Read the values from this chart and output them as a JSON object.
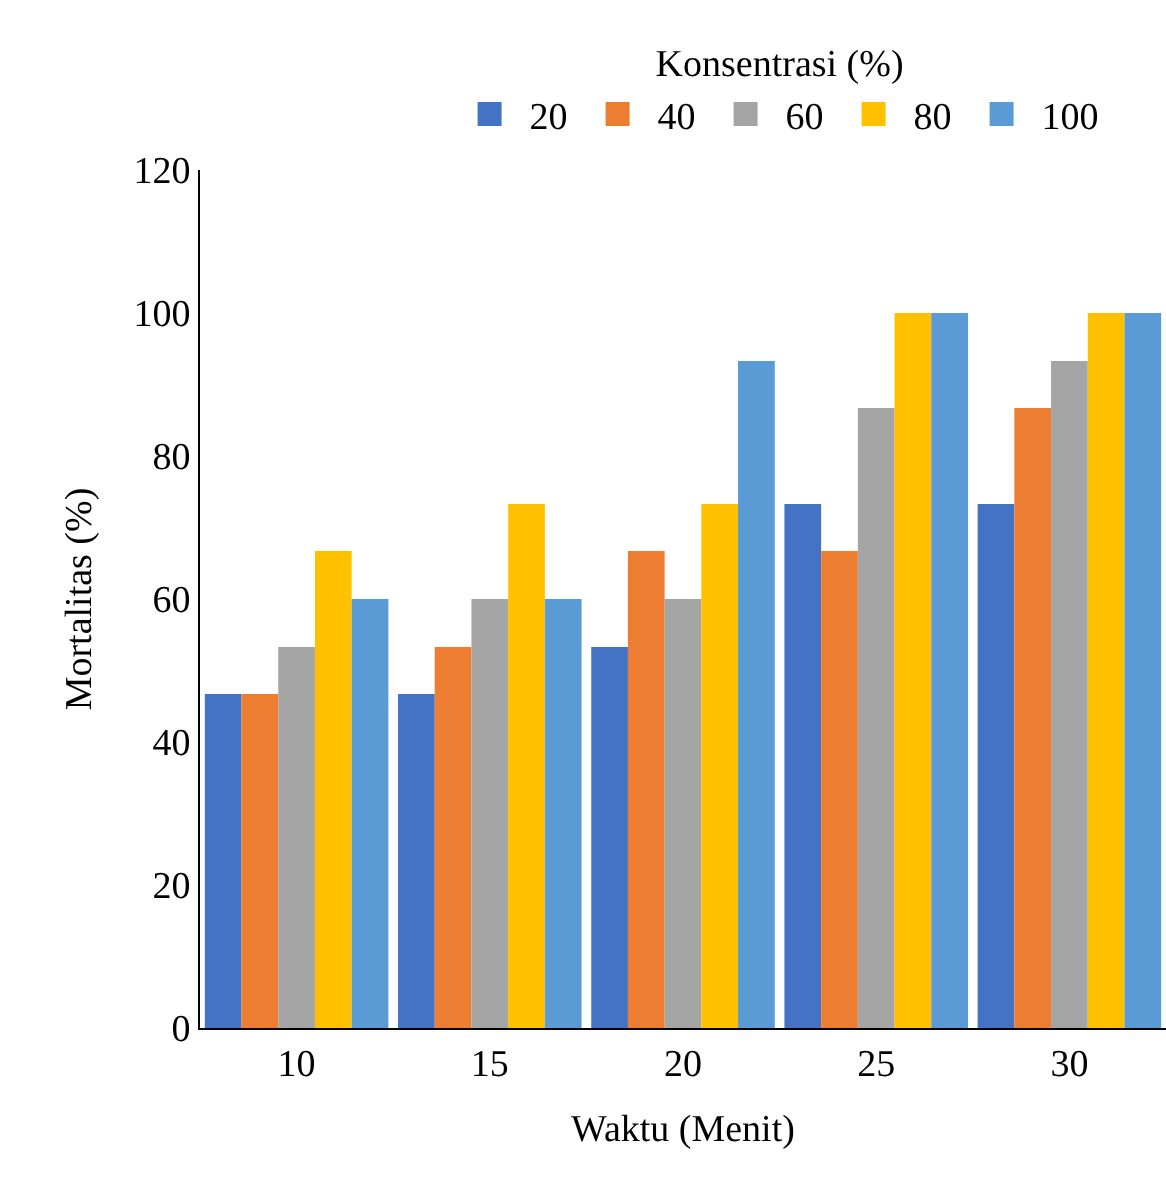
{
  "chart_data": {
    "type": "bar",
    "xlabel": "Waktu (Menit)",
    "ylabel": "Mortalitas (%)",
    "legend_title": "Konsentrasi (%)",
    "legend": "top",
    "grid": false,
    "categories": [
      "10",
      "15",
      "20",
      "25",
      "30"
    ],
    "ylim": [
      0,
      120
    ],
    "yticks": [
      0,
      20,
      40,
      60,
      80,
      100,
      120
    ],
    "series": [
      {
        "name": "20",
        "color": "#4472c4",
        "values": [
          46.7,
          46.7,
          53.3,
          73.3,
          73.3
        ]
      },
      {
        "name": "40",
        "color": "#ed7d31",
        "values": [
          46.7,
          53.3,
          66.7,
          66.7,
          86.7
        ]
      },
      {
        "name": "60",
        "color": "#a5a5a5",
        "values": [
          53.3,
          60,
          60,
          86.7,
          93.3
        ]
      },
      {
        "name": "80",
        "color": "#ffc000",
        "values": [
          66.7,
          73.3,
          73.3,
          100,
          100
        ]
      },
      {
        "name": "100",
        "color": "#5b9bd5",
        "values": [
          60,
          60,
          93.3,
          100,
          100
        ]
      }
    ]
  }
}
